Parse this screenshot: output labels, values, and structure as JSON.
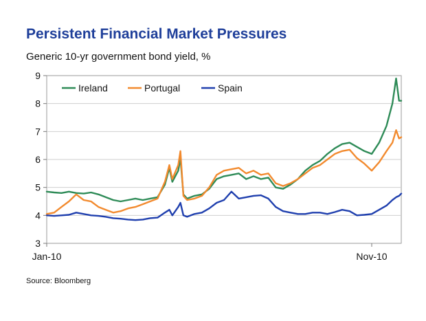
{
  "chart_data": {
    "type": "line",
    "title": "Persistent Financial Market Pressures",
    "subtitle": "Generic 10-yr government bond yield, %",
    "source": "Source: Bloomberg",
    "ylim": [
      3,
      9
    ],
    "yticks": [
      3,
      4,
      5,
      6,
      7,
      8,
      9
    ],
    "xlim": [
      0,
      48
    ],
    "xticks": [
      {
        "x": 0,
        "label": "Jan-10"
      },
      {
        "x": 44,
        "label": "Nov-10"
      }
    ],
    "grid": "horizontal",
    "legend": "top-left",
    "series": [
      {
        "name": "Ireland",
        "color": "#2e8b57",
        "points": [
          [
            0,
            4.85
          ],
          [
            1,
            4.82
          ],
          [
            2,
            4.8
          ],
          [
            3,
            4.85
          ],
          [
            4,
            4.8
          ],
          [
            5,
            4.78
          ],
          [
            6,
            4.82
          ],
          [
            7,
            4.75
          ],
          [
            8,
            4.65
          ],
          [
            9,
            4.55
          ],
          [
            10,
            4.5
          ],
          [
            11,
            4.55
          ],
          [
            12,
            4.6
          ],
          [
            13,
            4.55
          ],
          [
            14,
            4.6
          ],
          [
            15,
            4.65
          ],
          [
            16,
            5.1
          ],
          [
            16.6,
            5.7
          ],
          [
            17,
            5.2
          ],
          [
            17.8,
            5.6
          ],
          [
            18.1,
            6.05
          ],
          [
            18.5,
            4.75
          ],
          [
            19,
            4.6
          ],
          [
            20,
            4.7
          ],
          [
            21,
            4.75
          ],
          [
            22,
            4.95
          ],
          [
            23,
            5.3
          ],
          [
            24,
            5.4
          ],
          [
            25,
            5.45
          ],
          [
            26,
            5.5
          ],
          [
            27,
            5.3
          ],
          [
            28,
            5.4
          ],
          [
            29,
            5.3
          ],
          [
            30,
            5.35
          ],
          [
            31,
            5.0
          ],
          [
            32,
            4.95
          ],
          [
            33,
            5.1
          ],
          [
            34,
            5.3
          ],
          [
            35,
            5.6
          ],
          [
            36,
            5.8
          ],
          [
            37,
            5.95
          ],
          [
            38,
            6.2
          ],
          [
            39,
            6.4
          ],
          [
            40,
            6.55
          ],
          [
            41,
            6.6
          ],
          [
            42,
            6.45
          ],
          [
            43,
            6.3
          ],
          [
            44,
            6.2
          ],
          [
            45,
            6.6
          ],
          [
            46,
            7.2
          ],
          [
            46.8,
            8.0
          ],
          [
            47.3,
            8.9
          ],
          [
            47.7,
            8.1
          ],
          [
            48,
            8.1
          ]
        ]
      },
      {
        "name": "Portugal",
        "color": "#f28a2e",
        "points": [
          [
            0,
            4.05
          ],
          [
            1,
            4.1
          ],
          [
            2,
            4.3
          ],
          [
            3,
            4.5
          ],
          [
            4,
            4.75
          ],
          [
            5,
            4.55
          ],
          [
            6,
            4.5
          ],
          [
            7,
            4.3
          ],
          [
            8,
            4.2
          ],
          [
            9,
            4.1
          ],
          [
            10,
            4.15
          ],
          [
            11,
            4.25
          ],
          [
            12,
            4.3
          ],
          [
            13,
            4.4
          ],
          [
            14,
            4.5
          ],
          [
            15,
            4.6
          ],
          [
            16,
            5.2
          ],
          [
            16.6,
            5.8
          ],
          [
            17,
            5.3
          ],
          [
            17.8,
            5.8
          ],
          [
            18.1,
            6.3
          ],
          [
            18.5,
            4.7
          ],
          [
            19,
            4.55
          ],
          [
            20,
            4.6
          ],
          [
            21,
            4.7
          ],
          [
            22,
            5.0
          ],
          [
            23,
            5.45
          ],
          [
            24,
            5.6
          ],
          [
            25,
            5.65
          ],
          [
            26,
            5.7
          ],
          [
            27,
            5.5
          ],
          [
            28,
            5.6
          ],
          [
            29,
            5.45
          ],
          [
            30,
            5.5
          ],
          [
            31,
            5.15
          ],
          [
            32,
            5.05
          ],
          [
            33,
            5.15
          ],
          [
            34,
            5.3
          ],
          [
            35,
            5.5
          ],
          [
            36,
            5.7
          ],
          [
            37,
            5.8
          ],
          [
            38,
            6.0
          ],
          [
            39,
            6.2
          ],
          [
            40,
            6.3
          ],
          [
            41,
            6.35
          ],
          [
            42,
            6.05
          ],
          [
            43,
            5.85
          ],
          [
            44,
            5.6
          ],
          [
            45,
            5.9
          ],
          [
            46,
            6.3
          ],
          [
            46.8,
            6.6
          ],
          [
            47.3,
            7.05
          ],
          [
            47.7,
            6.75
          ],
          [
            48,
            6.8
          ]
        ]
      },
      {
        "name": "Spain",
        "color": "#1f3fae",
        "points": [
          [
            0,
            4.0
          ],
          [
            1,
            3.98
          ],
          [
            2,
            4.0
          ],
          [
            3,
            4.02
          ],
          [
            4,
            4.1
          ],
          [
            5,
            4.05
          ],
          [
            6,
            4.0
          ],
          [
            7,
            3.98
          ],
          [
            8,
            3.95
          ],
          [
            9,
            3.9
          ],
          [
            10,
            3.88
          ],
          [
            11,
            3.85
          ],
          [
            12,
            3.83
          ],
          [
            13,
            3.85
          ],
          [
            14,
            3.9
          ],
          [
            15,
            3.92
          ],
          [
            16,
            4.1
          ],
          [
            16.6,
            4.2
          ],
          [
            17,
            4.0
          ],
          [
            17.8,
            4.3
          ],
          [
            18.1,
            4.45
          ],
          [
            18.5,
            4.0
          ],
          [
            19,
            3.95
          ],
          [
            20,
            4.05
          ],
          [
            21,
            4.1
          ],
          [
            22,
            4.25
          ],
          [
            23,
            4.45
          ],
          [
            24,
            4.55
          ],
          [
            25,
            4.85
          ],
          [
            26,
            4.6
          ],
          [
            27,
            4.65
          ],
          [
            28,
            4.7
          ],
          [
            29,
            4.72
          ],
          [
            30,
            4.6
          ],
          [
            31,
            4.3
          ],
          [
            32,
            4.15
          ],
          [
            33,
            4.1
          ],
          [
            34,
            4.05
          ],
          [
            35,
            4.05
          ],
          [
            36,
            4.1
          ],
          [
            37,
            4.1
          ],
          [
            38,
            4.05
          ],
          [
            39,
            4.12
          ],
          [
            40,
            4.2
          ],
          [
            41,
            4.15
          ],
          [
            42,
            4.0
          ],
          [
            43,
            4.02
          ],
          [
            44,
            4.05
          ],
          [
            45,
            4.2
          ],
          [
            46,
            4.35
          ],
          [
            46.8,
            4.55
          ],
          [
            47.3,
            4.65
          ],
          [
            47.7,
            4.7
          ],
          [
            48,
            4.78
          ]
        ]
      }
    ]
  }
}
